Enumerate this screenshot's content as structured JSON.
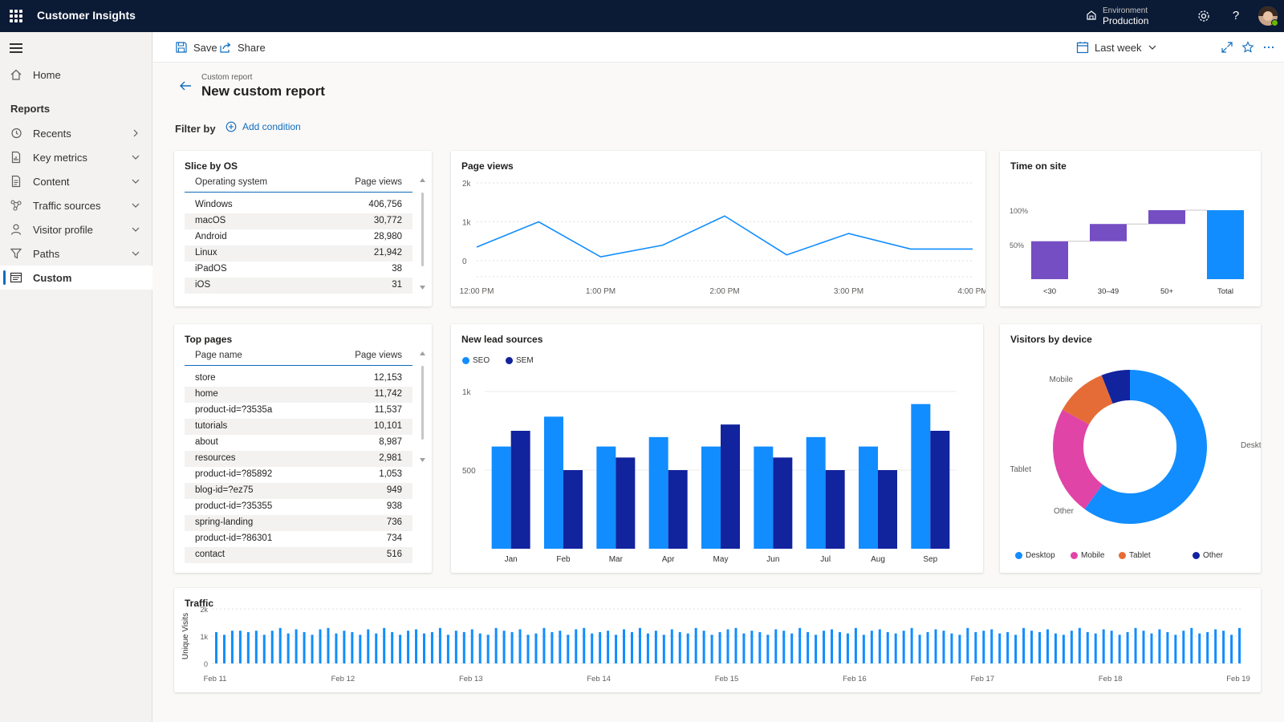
{
  "topbar": {
    "app_title": "Customer Insights",
    "environment_label": "Environment",
    "environment_value": "Production",
    "icons": [
      "waffle-icon",
      "environment-icon",
      "settings-icon",
      "help-icon",
      "avatar"
    ]
  },
  "sidebar": {
    "home_label": "Home",
    "section_label": "Reports",
    "items": [
      {
        "label": "Recents",
        "icon": "history-icon",
        "chevron": "right"
      },
      {
        "label": "Key metrics",
        "icon": "document-chart-icon",
        "chevron": "down"
      },
      {
        "label": "Content",
        "icon": "document-icon",
        "chevron": "down"
      },
      {
        "label": "Traffic sources",
        "icon": "network-icon",
        "chevron": "down"
      },
      {
        "label": "Visitor profile",
        "icon": "person-icon",
        "chevron": "down"
      },
      {
        "label": "Paths",
        "icon": "filter-icon",
        "chevron": "down"
      },
      {
        "label": "Custom",
        "icon": "custom-report-icon",
        "active": true
      }
    ]
  },
  "commandbar": {
    "save_label": "Save",
    "share_label": "Share",
    "date_range_label": "Last week"
  },
  "header": {
    "breadcrumb": "Custom report",
    "title": "New custom report"
  },
  "filter": {
    "label": "Filter by",
    "add_condition_label": "Add condition"
  },
  "slice_by_os": {
    "title": "Slice by OS",
    "col1": "Operating system",
    "col2": "Page views",
    "rows": [
      {
        "name": "Windows",
        "value": "406,756"
      },
      {
        "name": "macOS",
        "value": "30,772"
      },
      {
        "name": "Android",
        "value": "28,980"
      },
      {
        "name": "Linux",
        "value": "21,942"
      },
      {
        "name": "iPadOS",
        "value": "38"
      },
      {
        "name": "iOS",
        "value": "31"
      }
    ]
  },
  "top_pages": {
    "title": "Top pages",
    "col1": "Page name",
    "col2": "Page views",
    "rows": [
      {
        "name": "store",
        "value": "12,153"
      },
      {
        "name": "home",
        "value": "11,742"
      },
      {
        "name": "product-id=?3535a",
        "value": "11,537"
      },
      {
        "name": "tutorials",
        "value": "10,101"
      },
      {
        "name": "about",
        "value": "8,987"
      },
      {
        "name": "resources",
        "value": "2,981"
      },
      {
        "name": "product-id=?85892",
        "value": "1,053"
      },
      {
        "name": "blog-id=?ez75",
        "value": "949"
      },
      {
        "name": "product-id=?35355",
        "value": "938"
      },
      {
        "name": "spring-landing",
        "value": "736"
      },
      {
        "name": "product-id=?86301",
        "value": "734"
      },
      {
        "name": "contact",
        "value": "516"
      }
    ]
  },
  "colors": {
    "accent": "#0f6cbd",
    "primary_blue": "#118dff",
    "dark_blue": "#12239e",
    "purple": "#744ec2",
    "pink": "#e044a7",
    "orange": "#e66c37",
    "topbar_bg": "#0b1a35"
  },
  "chart_data": [
    {
      "id": "page_views",
      "type": "line",
      "title": "Page views",
      "x_ticks": [
        "12:00 PM",
        "1:00 PM",
        "2:00 PM",
        "3:00 PM",
        "4:00 PM"
      ],
      "y_ticks": [
        "0",
        "1k",
        "2k"
      ],
      "ylim": [
        0,
        2000
      ],
      "x": [
        0,
        0.5,
        1.0,
        1.5,
        2.0,
        2.5,
        3.0,
        3.5,
        4.0
      ],
      "values": [
        350,
        1000,
        100,
        400,
        1150,
        150,
        700,
        300,
        300
      ],
      "color": "#118dff",
      "grid": true
    },
    {
      "id": "time_on_site",
      "type": "bar",
      "subtype": "waterfall",
      "title": "Time on site",
      "categories": [
        "<30",
        "30–49",
        "50+",
        "Total"
      ],
      "values": [
        55,
        25,
        20,
        100
      ],
      "y_ticks": [
        "50%",
        "100%"
      ],
      "ylim": [
        0,
        100
      ],
      "colors": [
        "#744ec2",
        "#744ec2",
        "#744ec2",
        "#118dff"
      ]
    },
    {
      "id": "new_lead_sources",
      "type": "bar",
      "title": "New lead sources",
      "categories": [
        "Jan",
        "Feb",
        "Mar",
        "Apr",
        "May",
        "Jun",
        "Jul",
        "Aug",
        "Sep"
      ],
      "series": [
        {
          "name": "SEO",
          "color": "#118dff",
          "values": [
            650,
            840,
            650,
            710,
            650,
            650,
            710,
            650,
            920
          ]
        },
        {
          "name": "SEM",
          "color": "#12239e",
          "values": [
            750,
            500,
            580,
            500,
            790,
            580,
            500,
            500,
            750
          ]
        }
      ],
      "y_ticks": [
        "500",
        "1k"
      ],
      "ylim": [
        0,
        1000
      ],
      "legend": "top-left",
      "grid": true
    },
    {
      "id": "visitors_by_device",
      "type": "pie",
      "subtype": "donut",
      "title": "Visitors by device",
      "categories": [
        "Desktop",
        "Mobile",
        "Tablet",
        "Other"
      ],
      "values": [
        60,
        23,
        11,
        6
      ],
      "colors": [
        "#118dff",
        "#e044a7",
        "#e66c37",
        "#12239e"
      ],
      "legend": "bottom"
    },
    {
      "id": "traffic",
      "type": "bar",
      "title": "Traffic",
      "ylabel": "Unique Visits",
      "y_ticks": [
        "0",
        "1k",
        "2k"
      ],
      "ylim": [
        0,
        2000
      ],
      "x_ticks": [
        "Feb 11",
        "Feb 12",
        "Feb 13",
        "Feb 14",
        "Feb 15",
        "Feb 16",
        "Feb 17",
        "Feb 18",
        "Feb 19"
      ],
      "bars_per_day": 16,
      "values": [
        1150,
        1050,
        1200,
        1200,
        1150,
        1200,
        1050,
        1200,
        1300,
        1100,
        1250,
        1150,
        1050,
        1250,
        1300,
        1100,
        1200,
        1150,
        1050,
        1250,
        1100,
        1300,
        1150,
        1050,
        1200,
        1250,
        1100,
        1150,
        1300,
        1050,
        1200,
        1150,
        1250,
        1100,
        1050,
        1300,
        1200,
        1150,
        1250,
        1050,
        1100,
        1300,
        1150,
        1200,
        1050,
        1250,
        1300,
        1100,
        1150,
        1200,
        1050,
        1250,
        1150,
        1300,
        1100,
        1200,
        1050,
        1250,
        1150,
        1100,
        1300,
        1200,
        1050,
        1150,
        1250,
        1300,
        1100,
        1200,
        1150,
        1050,
        1250,
        1200,
        1100,
        1300,
        1150,
        1050,
        1200,
        1250,
        1150,
        1100,
        1300,
        1050,
        1200,
        1250,
        1150,
        1100,
        1200,
        1300,
        1050,
        1150,
        1250,
        1200,
        1100,
        1050,
        1300,
        1150,
        1200,
        1250,
        1100,
        1150,
        1050,
        1300,
        1200,
        1150,
        1250,
        1100,
        1050,
        1200,
        1300,
        1150,
        1100,
        1250,
        1200,
        1050,
        1150,
        1300,
        1200,
        1100,
        1250,
        1150,
        1050,
        1200,
        1300,
        1100,
        1150,
        1250,
        1200,
        1050,
        1300
      ],
      "color": "#118dff",
      "grid": true
    }
  ]
}
